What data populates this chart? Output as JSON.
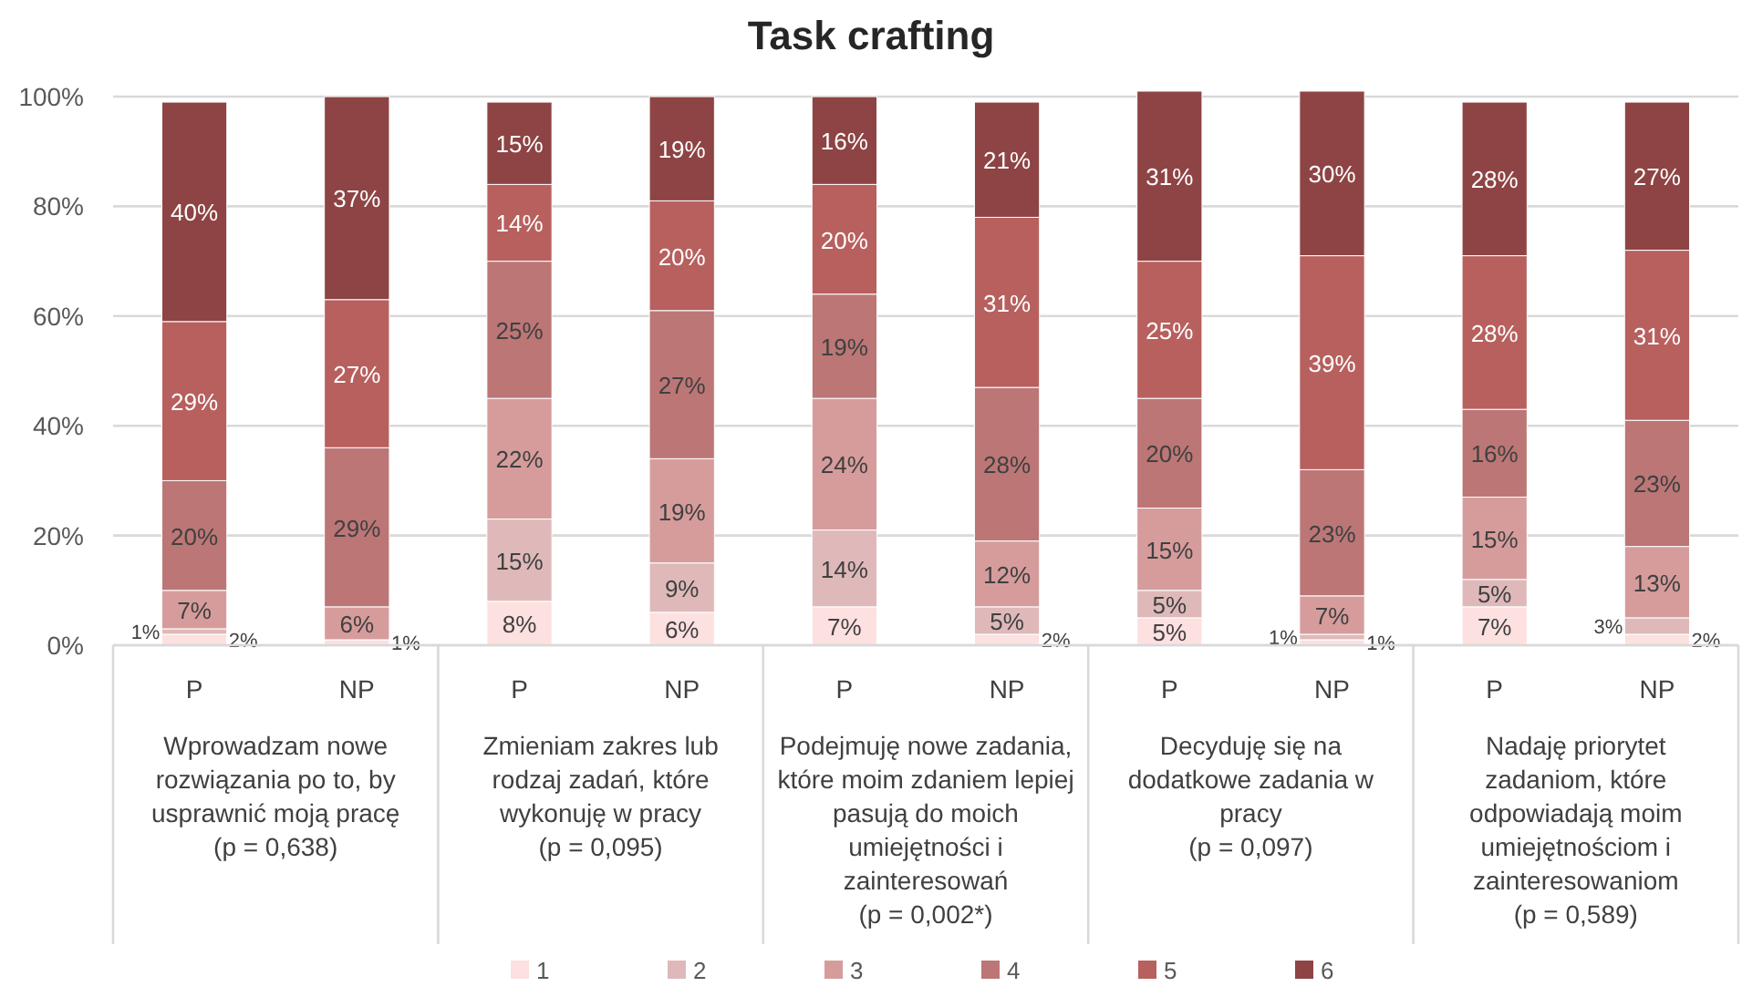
{
  "chart_data": {
    "type": "bar",
    "title": "Task crafting",
    "stacked": true,
    "categories": [
      "P",
      "NP",
      "P",
      "NP",
      "P",
      "NP",
      "P",
      "NP",
      "P",
      "NP"
    ],
    "annotations": [
      "Wprowadzam nowe rozwiązania po to, by usprawnić moją pracę (p = 0,638)",
      "Zmieniam zakres lub rodzaj zadań, które wykonuję w pracy (p = 0,095)",
      "Podejmuję nowe zadania, które moim zdaniem lepiej pasują do moich umiejętności i zainteresowań (p = 0,002*)",
      "Decyduję się na dodatkowe zadania w pracy (p = 0,097)",
      "Nadaję priorytet zadaniom, które odpowiadają moim umiejętnościom i zainteresowaniom (p = 0,589)"
    ],
    "series": [
      {
        "name": "1",
        "color": "#fde0e0",
        "values": [
          2,
          1,
          8,
          6,
          7,
          2,
          5,
          1,
          7,
          2
        ],
        "value_labels": [
          "2%",
          "1%",
          "8%",
          "6%",
          "7%",
          "2%",
          "5%",
          "1%",
          "7%",
          "2%"
        ]
      },
      {
        "name": "2",
        "color": "#dfb9b9",
        "values": [
          1,
          0,
          15,
          9,
          14,
          5,
          5,
          1,
          5,
          3
        ],
        "value_labels": [
          "1%",
          null,
          "15%",
          "9%",
          "14%",
          "5%",
          "5%",
          "1%",
          "5%",
          "3%"
        ]
      },
      {
        "name": "3",
        "color": "#d69c9c",
        "values": [
          7,
          6,
          22,
          19,
          24,
          12,
          15,
          7,
          15,
          13
        ],
        "value_labels": [
          "7%",
          "6%",
          "22%",
          "19%",
          "24%",
          "12%",
          "15%",
          "7%",
          "15%",
          "13%"
        ]
      },
      {
        "name": "4",
        "color": "#bc7676",
        "values": [
          20,
          29,
          25,
          27,
          19,
          28,
          20,
          23,
          16,
          23
        ],
        "value_labels": [
          "20%",
          "29%",
          "25%",
          "27%",
          "19%",
          "28%",
          "20%",
          "23%",
          "16%",
          "23%"
        ]
      },
      {
        "name": "5",
        "color": "#b7605e",
        "values": [
          29,
          27,
          14,
          20,
          20,
          31,
          25,
          39,
          28,
          31
        ],
        "value_labels": [
          "29%",
          "27%",
          "14%",
          "20%",
          "20%",
          "31%",
          "25%",
          "39%",
          "28%",
          "31%"
        ]
      },
      {
        "name": "6",
        "color": "#8e4444",
        "values": [
          40,
          37,
          15,
          19,
          16,
          21,
          31,
          30,
          28,
          27
        ],
        "value_labels": [
          "40%",
          "37%",
          "15%",
          "19%",
          "16%",
          "21%",
          "31%",
          "30%",
          "28%",
          "27%"
        ]
      }
    ],
    "ylim": [
      0,
      101
    ],
    "yticks": [
      {
        "value": 0,
        "label": "0%"
      },
      {
        "value": 20,
        "label": "20%"
      },
      {
        "value": 40,
        "label": "40%"
      },
      {
        "value": 60,
        "label": "60%"
      },
      {
        "value": 80,
        "label": "80%"
      },
      {
        "value": 100,
        "label": "100%"
      }
    ],
    "grid": "y",
    "legend": "bottom"
  }
}
